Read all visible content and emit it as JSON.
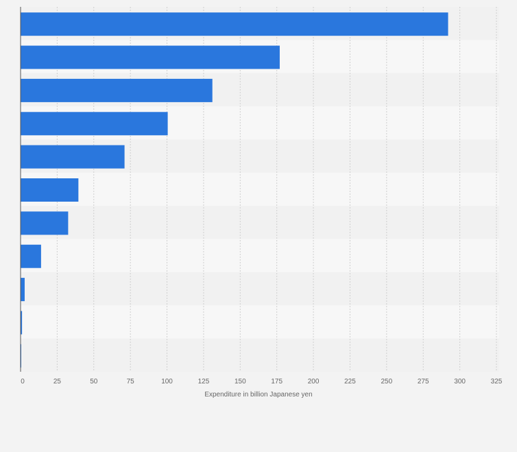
{
  "chart_data": {
    "type": "bar",
    "orientation": "horizontal",
    "categories": [
      "",
      "",
      "",
      "",
      "",
      "",
      "",
      "",
      "",
      "",
      ""
    ],
    "values": [
      292,
      177,
      131,
      100.5,
      71,
      39.5,
      32.5,
      14,
      2.8,
      1,
      0.3
    ],
    "title": "",
    "xlabel": "Expenditure in billion Japanese yen",
    "ylabel": "",
    "xlim": [
      0,
      325
    ],
    "xticks": [
      0,
      25,
      50,
      75,
      100,
      125,
      150,
      175,
      200,
      225,
      250,
      275,
      300,
      325
    ],
    "grid": true,
    "legend": "none",
    "colors": {
      "bar": "#2a77dd",
      "band_light": "#f7f7f7",
      "band_dark": "#f1f1f1",
      "grid": "#cfcfcf",
      "axis": "#555555",
      "background": "#f3f3f3"
    }
  }
}
